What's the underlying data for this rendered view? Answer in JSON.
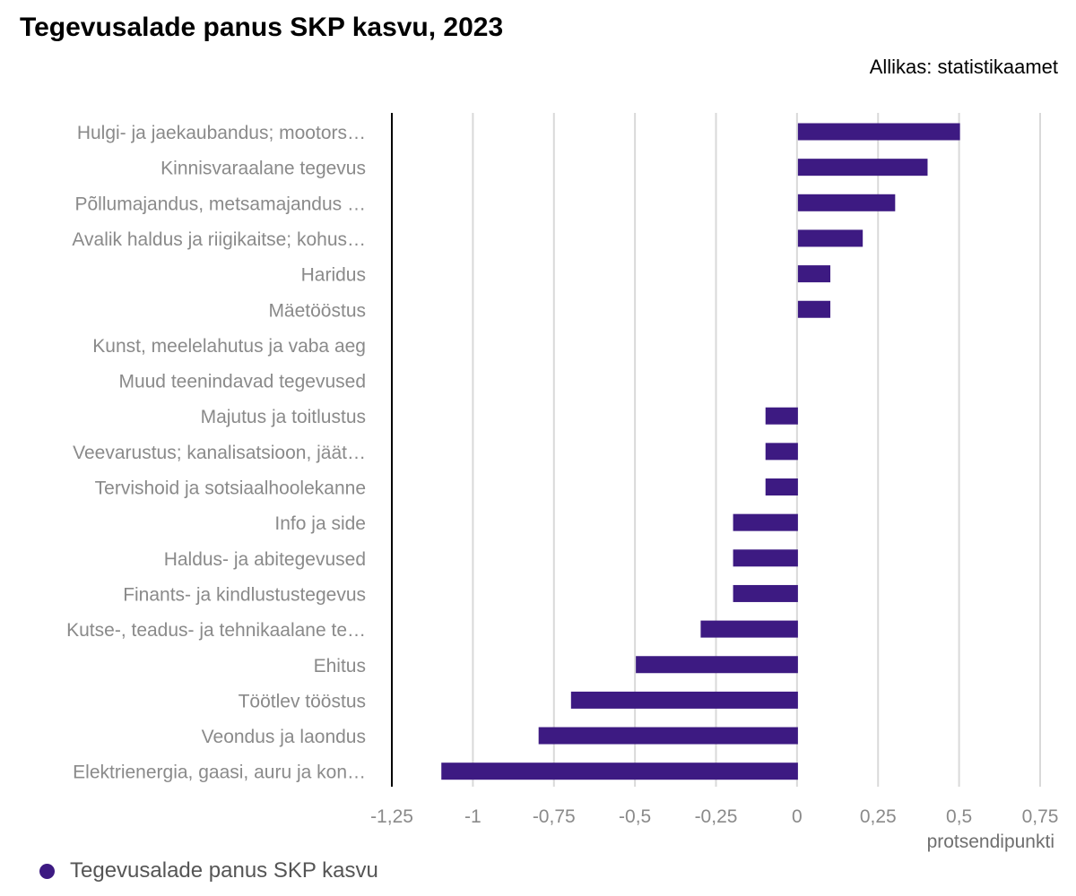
{
  "title": "Tegevusalade panus SKP kasvu, 2023",
  "source": "Allikas: statistikaamet",
  "colors": {
    "bar": "#3d1a82",
    "grid": "#d9d9d9",
    "axis": "#000000"
  },
  "chart_data": {
    "type": "bar",
    "orientation": "horizontal",
    "categories": [
      "Hulgi- ja jaekaubandus; mootors…",
      "Kinnisvaraalane tegevus",
      "Põllumajandus, metsamajandus …",
      "Avalik haldus ja riigikaitse; kohus…",
      "Haridus",
      "Mäetööstus",
      "Kunst, meelelahutus ja vaba aeg",
      "Muud teenindavad tegevused",
      "Majutus ja toitlustus",
      "Veevarustus; kanalisatsioon, jäät…",
      "Tervishoid ja sotsiaalhoolekanne",
      "Info ja side",
      "Haldus- ja abitegevused",
      "Finants- ja kindlustustegevus",
      "Kutse-, teadus- ja tehnikaalane te…",
      "Ehitus",
      "Töötlev tööstus",
      "Veondus ja laondus",
      "Elektrienergia, gaasi, auru ja kon…"
    ],
    "series": [
      {
        "name": "Tegevusalade panus SKP kasvu",
        "values": [
          0.5,
          0.4,
          0.3,
          0.2,
          0.1,
          0.1,
          0,
          0,
          -0.1,
          -0.1,
          -0.1,
          -0.2,
          -0.2,
          -0.2,
          -0.3,
          -0.5,
          -0.7,
          -0.8,
          -1.1
        ]
      }
    ],
    "xlim": [
      -1.25,
      0.75
    ],
    "xticks": [
      -1.25,
      -1,
      -0.75,
      -0.5,
      -0.25,
      0,
      0.25,
      0.5,
      0.75
    ],
    "xtick_labels": [
      "-1,25",
      "-1",
      "-0,75",
      "-0,5",
      "-0,25",
      "0",
      "0,25",
      "0,5",
      "0,75"
    ],
    "xlabel": "protsendipunkti",
    "ylabel": "",
    "grid": true,
    "legend_position": "bottom-left"
  }
}
